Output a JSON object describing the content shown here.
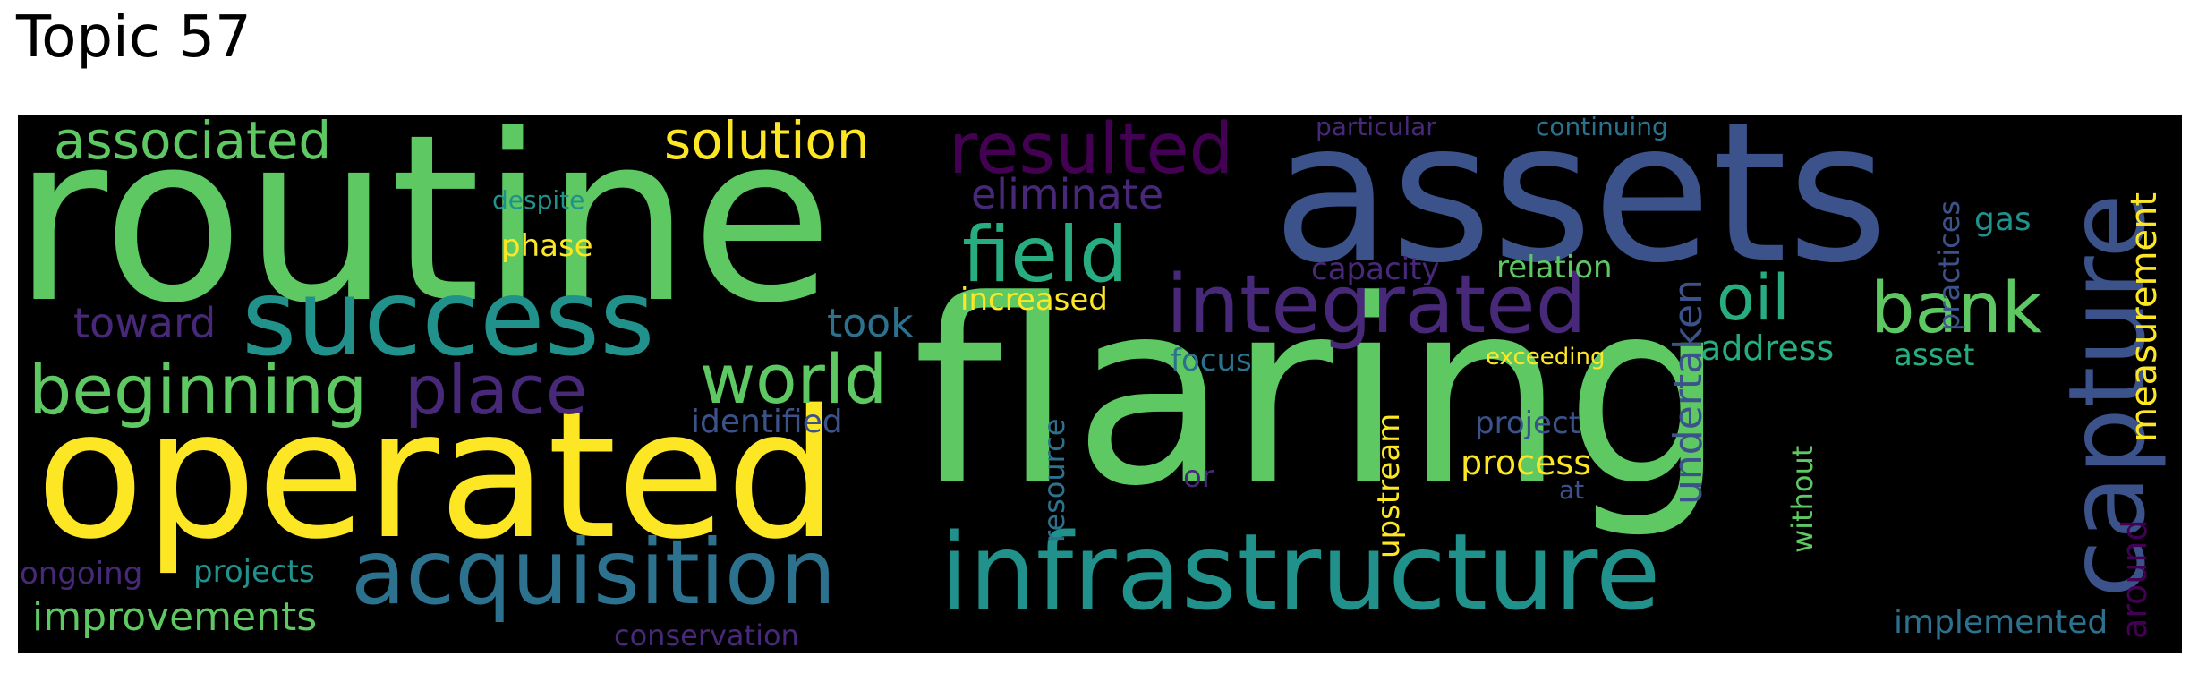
{
  "title": "Topic 57",
  "words": {
    "routine": {
      "text": "routine",
      "color": "#5ec962"
    },
    "assets": {
      "text": "assets",
      "color": "#3b528b"
    },
    "flaring": {
      "text": "flaring",
      "color": "#5ec962"
    },
    "operated": {
      "text": "operated",
      "color": "#fde725"
    },
    "success": {
      "text": "success",
      "color": "#21918c"
    },
    "infrastructure": {
      "text": "infrastructure",
      "color": "#21918c"
    },
    "capture": {
      "text": "capture",
      "color": "#3b528b"
    },
    "acquisition": {
      "text": "acquisition",
      "color": "#2c728e"
    },
    "integrated": {
      "text": "integrated",
      "color": "#482878"
    },
    "resulted": {
      "text": "resulted",
      "color": "#440154"
    },
    "field": {
      "text": "field",
      "color": "#27ad81"
    },
    "beginning": {
      "text": "beginning",
      "color": "#5ec962"
    },
    "place": {
      "text": "place",
      "color": "#482878"
    },
    "world": {
      "text": "world",
      "color": "#5ec962"
    },
    "associated": {
      "text": "associated",
      "color": "#5ec962"
    },
    "solution": {
      "text": "solution",
      "color": "#fde725"
    },
    "oil": {
      "text": "oil",
      "color": "#27ad81"
    },
    "bank": {
      "text": "bank",
      "color": "#5ec962"
    },
    "improvements": {
      "text": "improvements",
      "color": "#5ec962"
    },
    "eliminate": {
      "text": "eliminate",
      "color": "#482878"
    },
    "toward": {
      "text": "toward",
      "color": "#482878"
    },
    "took": {
      "text": "took",
      "color": "#2c728e"
    },
    "increased": {
      "text": "increased",
      "color": "#fde725"
    },
    "phase": {
      "text": "phase",
      "color": "#fde725"
    },
    "despite": {
      "text": "despite",
      "color": "#21918c"
    },
    "measurement": {
      "text": "measurement",
      "color": "#fde725"
    },
    "undertaken": {
      "text": "undertaken",
      "color": "#3b528b"
    },
    "relation": {
      "text": "relation",
      "color": "#5ec962"
    },
    "capacity": {
      "text": "capacity",
      "color": "#482878"
    },
    "gas": {
      "text": "gas",
      "color": "#21918c"
    },
    "address": {
      "text": "address",
      "color": "#27ad81"
    },
    "asset": {
      "text": "asset",
      "color": "#27ad81"
    },
    "practices": {
      "text": "practices",
      "color": "#3b528b"
    },
    "focus": {
      "text": "focus",
      "color": "#2c728e"
    },
    "exceeding": {
      "text": "exceeding",
      "color": "#fde725"
    },
    "project": {
      "text": "project",
      "color": "#3b528b"
    },
    "process": {
      "text": "process",
      "color": "#fde725"
    },
    "upstream": {
      "text": "upstream",
      "color": "#fde725"
    },
    "resource": {
      "text": "resource",
      "color": "#2c728e"
    },
    "identified": {
      "text": "identified",
      "color": "#3b528b"
    },
    "or": {
      "text": "or",
      "color": "#482878"
    },
    "at": {
      "text": "at",
      "color": "#3b528b"
    },
    "without": {
      "text": "without",
      "color": "#5ec962"
    },
    "around": {
      "text": "around",
      "color": "#440154"
    },
    "implemented": {
      "text": "implemented",
      "color": "#2c728e"
    },
    "ongoing": {
      "text": "ongoing",
      "color": "#482878"
    },
    "projects": {
      "text": "projects",
      "color": "#21918c"
    },
    "conservation": {
      "text": "conservation",
      "color": "#482878"
    },
    "particular": {
      "text": "particular",
      "color": "#482878"
    },
    "continuing": {
      "text": "continuing",
      "color": "#2c728e"
    }
  }
}
